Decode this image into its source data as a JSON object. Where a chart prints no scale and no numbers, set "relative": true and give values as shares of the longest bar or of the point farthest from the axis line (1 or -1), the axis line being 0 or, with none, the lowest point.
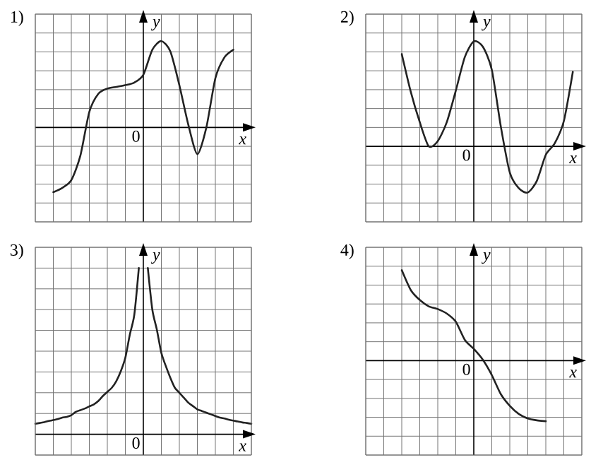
{
  "chart_data": [
    {
      "type": "line",
      "title": "1)",
      "xlabel": "x",
      "ylabel": "y",
      "annotations": [
        "0"
      ],
      "relative": true,
      "grid": true,
      "categories": [
        null,
        null,
        null,
        null,
        null,
        null,
        null,
        null,
        null,
        null,
        null,
        null,
        null,
        null,
        null,
        null,
        null,
        null,
        null,
        null,
        null,
        null,
        null,
        null,
        null
      ],
      "series": [
        {
          "color": "#222222",
          "values": [
            null,
            null,
            -0.75,
            -0.7,
            -0.61,
            -0.33,
            0.18,
            0.39,
            0.45,
            0.47,
            0.49,
            0.52,
            0.61,
            0.9,
            1,
            0.88,
            0.49,
            0.03,
            -0.31,
            0,
            0.57,
            0.81,
            0.9,
            null,
            null
          ]
        }
      ]
    },
    {
      "type": "line",
      "title": "2)",
      "xlabel": "x",
      "ylabel": "y",
      "annotations": [
        "0"
      ],
      "relative": true,
      "grid": true,
      "categories": [
        null,
        null,
        null,
        null,
        null,
        null,
        null,
        null,
        null,
        null,
        null,
        null,
        null,
        null,
        null,
        null,
        null,
        null,
        null,
        null,
        null,
        null,
        null,
        null,
        null
      ],
      "series": [
        {
          "color": "#222222",
          "values": [
            null,
            null,
            null,
            null,
            0.88,
            0.52,
            0.23,
            0,
            0.05,
            0.23,
            0.53,
            0.85,
            1,
            0.95,
            0.73,
            0.19,
            -0.25,
            -0.4,
            -0.44,
            -0.33,
            -0.08,
            0.03,
            0.24,
            0.71,
            null
          ]
        }
      ]
    },
    {
      "type": "line",
      "title": "3)",
      "xlabel": "x",
      "ylabel": "y",
      "annotations": [
        "0"
      ],
      "relative": true,
      "grid": true,
      "categories": [
        null,
        null,
        null,
        null,
        null,
        null,
        null,
        null,
        null,
        null,
        null,
        null,
        null,
        null,
        null,
        null,
        null,
        null,
        null,
        null,
        null,
        null,
        null,
        null,
        null,
        null,
        null,
        null,
        null,
        null,
        null,
        null,
        null,
        null,
        null,
        null,
        null,
        null,
        null,
        null,
        null,
        null,
        null,
        null,
        null,
        null,
        null,
        null,
        null
      ],
      "series": [
        {
          "color": "#222222",
          "values": [
            0.063,
            0.068,
            0.073,
            0.08,
            0.085,
            0.092,
            0.1,
            0.105,
            0.115,
            0.135,
            0.145,
            0.155,
            0.168,
            0.18,
            0.2,
            0.23,
            0.255,
            0.28,
            0.32,
            0.38,
            0.46,
            0.6,
            0.72,
            1,
            null,
            null,
            null,
            null,
            null,
            null,
            null,
            null,
            null,
            null,
            null,
            null,
            null,
            null,
            null,
            null,
            null,
            null,
            null,
            null,
            null,
            null,
            null,
            null,
            null
          ]
        },
        {
          "color": "#222222",
          "values": [
            null,
            null,
            null,
            null,
            null,
            null,
            null,
            null,
            null,
            null,
            null,
            null,
            null,
            null,
            null,
            null,
            null,
            null,
            null,
            null,
            null,
            null,
            null,
            null,
            null,
            1,
            0.75,
            0.63,
            0.49,
            0.41,
            0.34,
            0.28,
            0.25,
            0.22,
            0.19,
            0.17,
            0.15,
            0.14,
            0.13,
            0.12,
            0.11,
            0.1,
            0.095,
            0.088,
            0.082,
            0.077,
            0.071,
            0.068,
            0.063
          ]
        }
      ]
    },
    {
      "type": "line",
      "title": "4)",
      "xlabel": "x",
      "ylabel": "y",
      "annotations": [
        "0"
      ],
      "relative": true,
      "grid": true,
      "categories": [
        null,
        null,
        null,
        null,
        null,
        null,
        null,
        null,
        null,
        null,
        null,
        null,
        null,
        null,
        null,
        null,
        null,
        null,
        null,
        null,
        null,
        null,
        null,
        null,
        null
      ],
      "series": [
        {
          "color": "#222222",
          "values": [
            null,
            null,
            null,
            null,
            1,
            0.78,
            0.67,
            0.6,
            0.57,
            0.52,
            0.43,
            0.23,
            0.13,
            0.01,
            -0.16,
            -0.37,
            -0.5,
            -0.59,
            -0.64,
            -0.66,
            -0.67,
            null,
            null,
            null,
            null
          ]
        }
      ]
    }
  ]
}
